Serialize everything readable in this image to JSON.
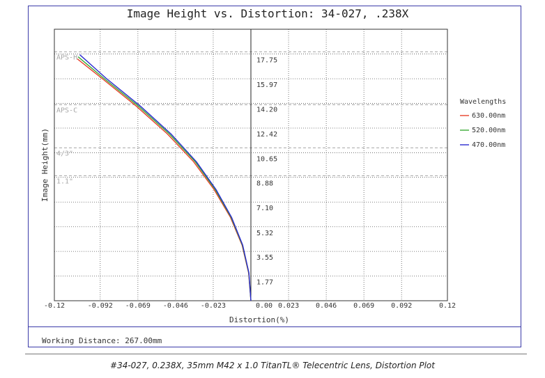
{
  "footer": {
    "working_distance": "Working Distance: 267.00mm",
    "caption": "#34-027, 0.238X, 35mm M42 x 1.0 TitanTL® Telecentric Lens, Distortion Plot"
  },
  "chart_data": {
    "type": "line",
    "title": "Image Height vs. Distortion: 34-027, .238X",
    "xlabel": "Distortion(%)",
    "ylabel": "Image Height(mm)",
    "xlim": [
      -0.12,
      0.12
    ],
    "ylim": [
      0,
      19.53
    ],
    "x_ticks": [
      -0.12,
      -0.092,
      -0.069,
      -0.046,
      -0.023,
      0.0,
      0.023,
      0.046,
      0.069,
      0.092,
      0.12
    ],
    "x_tick_labels": [
      "-0.12",
      "-0.092",
      "-0.069",
      "-0.046",
      "-0.023",
      "0.00",
      "0.023",
      "0.046",
      "0.069",
      "0.092",
      "0.12"
    ],
    "y_ticks": [
      1.77,
      3.55,
      5.32,
      7.1,
      8.88,
      10.65,
      12.42,
      14.2,
      15.97,
      17.75
    ],
    "y_tick_labels": [
      "1.77",
      "3.55",
      "5.32",
      "7.10",
      "8.88",
      "10.65",
      "12.42",
      "14.20",
      "15.97",
      "17.75"
    ],
    "grid": true,
    "legend": {
      "title": "Wavelengths",
      "position": "right"
    },
    "sensor_markers": [
      {
        "label": "APS-H",
        "y": 17.9
      },
      {
        "label": "APS-C",
        "y": 14.1
      },
      {
        "label": "4/3\"",
        "y": 11.0
      },
      {
        "label": "1.1\"",
        "y": 9.0
      }
    ],
    "series": [
      {
        "name": "630.00nm",
        "color": "#e8402a",
        "x": [
          0,
          -0.0014,
          -0.0054,
          -0.0125,
          -0.0225,
          -0.035,
          -0.051,
          -0.07,
          -0.091,
          -0.106
        ],
        "y": [
          0,
          2.0,
          4.0,
          6.0,
          8.0,
          10.0,
          12.0,
          14.0,
          16.0,
          17.4
        ]
      },
      {
        "name": "520.00nm",
        "color": "#3aaa35",
        "x": [
          0,
          -0.0013,
          -0.0052,
          -0.0121,
          -0.0218,
          -0.034,
          -0.0498,
          -0.0687,
          -0.0898,
          -0.1055
        ],
        "y": [
          0,
          2.0,
          4.0,
          6.0,
          8.0,
          10.0,
          12.0,
          14.0,
          16.0,
          17.55
        ]
      },
      {
        "name": "470.00nm",
        "color": "#2a2ad0",
        "x": [
          0,
          -0.0012,
          -0.005,
          -0.0118,
          -0.0213,
          -0.0333,
          -0.0488,
          -0.0675,
          -0.0884,
          -0.1045
        ],
        "y": [
          0,
          2.0,
          4.0,
          6.0,
          8.0,
          10.0,
          12.0,
          14.0,
          16.0,
          17.7
        ]
      }
    ]
  }
}
